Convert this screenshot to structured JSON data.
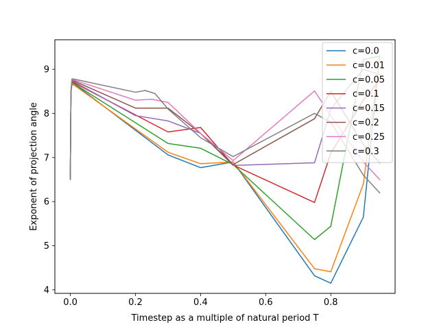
{
  "chart_data": {
    "type": "line",
    "title": "",
    "xlabel": "Timestep as a multiple of natural period T",
    "ylabel": "Exponent of projection angle",
    "xlim": [
      -0.0475,
      0.9975
    ],
    "ylim": [
      3.92,
      9.67
    ],
    "xticks": [
      0.0,
      0.2,
      0.4,
      0.6,
      0.8
    ],
    "xtick_labels": [
      "0.0",
      "0.2",
      "0.4",
      "0.6",
      "0.8"
    ],
    "yticks": [
      4,
      5,
      6,
      7,
      8,
      9
    ],
    "ytick_labels": [
      "4",
      "5",
      "6",
      "7",
      "8",
      "9"
    ],
    "grid": false,
    "legend_position": "top-right",
    "series": [
      {
        "name": "c=0.0",
        "color": "#1f77b4",
        "x": [
          0.0,
          0.001,
          0.002,
          0.005,
          0.01,
          0.3,
          0.4,
          0.5,
          0.75,
          0.8,
          0.9,
          0.95
        ],
        "y": [
          6.55,
          7.7,
          8.5,
          8.68,
          8.68,
          7.06,
          6.77,
          6.9,
          4.32,
          4.15,
          5.65,
          9.3
        ]
      },
      {
        "name": "c=0.01",
        "color": "#ff7f0e",
        "x": [
          0.0,
          0.001,
          0.002,
          0.005,
          0.01,
          0.3,
          0.4,
          0.5,
          0.75,
          0.8,
          0.9,
          0.95
        ],
        "y": [
          6.55,
          7.7,
          8.5,
          8.65,
          8.65,
          7.12,
          6.86,
          6.9,
          4.48,
          4.41,
          6.4,
          9.25
        ]
      },
      {
        "name": "c=0.05",
        "color": "#2ca02c",
        "x": [
          0.0,
          0.001,
          0.002,
          0.005,
          0.01,
          0.3,
          0.4,
          0.5,
          0.75,
          0.8,
          0.9,
          0.95
        ],
        "y": [
          6.55,
          7.7,
          8.5,
          8.68,
          8.68,
          7.32,
          7.21,
          6.84,
          5.14,
          5.44,
          9.22,
          9.3
        ]
      },
      {
        "name": "c=0.1",
        "color": "#d62728",
        "x": [
          0.0,
          0.001,
          0.002,
          0.005,
          0.01,
          0.3,
          0.4,
          0.5,
          0.75,
          0.8,
          0.9,
          0.95
        ],
        "y": [
          6.55,
          7.7,
          8.5,
          8.7,
          8.7,
          7.58,
          7.68,
          6.83,
          5.98,
          7.1,
          8.3,
          8.75
        ]
      },
      {
        "name": "c=0.15",
        "color": "#9467bd",
        "x": [
          0.0,
          0.001,
          0.002,
          0.005,
          0.01,
          0.2,
          0.3,
          0.4,
          0.5,
          0.75,
          0.8,
          0.9,
          0.95
        ],
        "y": [
          6.55,
          7.7,
          8.5,
          8.72,
          8.72,
          7.95,
          7.83,
          7.55,
          6.82,
          6.88,
          8.1,
          9.0,
          8.88
        ]
      },
      {
        "name": "c=0.2",
        "color": "#8c564b",
        "x": [
          0.0,
          0.001,
          0.002,
          0.005,
          0.01,
          0.2,
          0.3,
          0.4,
          0.5,
          0.75,
          0.8,
          0.9,
          0.95
        ],
        "y": [
          6.55,
          7.7,
          8.5,
          8.74,
          8.74,
          8.12,
          8.12,
          7.55,
          6.84,
          7.88,
          8.5,
          7.3,
          6.88
        ]
      },
      {
        "name": "c=0.25",
        "color": "#e377c2",
        "x": [
          0.0,
          0.001,
          0.002,
          0.005,
          0.01,
          0.2,
          0.25,
          0.3,
          0.4,
          0.5,
          0.75,
          0.8,
          0.9,
          0.95
        ],
        "y": [
          6.5,
          7.7,
          8.5,
          8.76,
          8.76,
          8.3,
          8.32,
          8.25,
          7.55,
          6.93,
          8.51,
          7.95,
          6.9,
          6.5
        ]
      },
      {
        "name": "c=0.3",
        "color": "#7f7f7f",
        "x": [
          0.0,
          0.001,
          0.002,
          0.005,
          0.01,
          0.2,
          0.23,
          0.26,
          0.3,
          0.4,
          0.5,
          0.75,
          0.8,
          0.9,
          0.95
        ],
        "y": [
          6.5,
          7.7,
          8.5,
          8.78,
          8.78,
          8.48,
          8.52,
          8.45,
          8.1,
          7.45,
          7.02,
          8.0,
          7.8,
          6.6,
          6.2
        ]
      }
    ]
  }
}
